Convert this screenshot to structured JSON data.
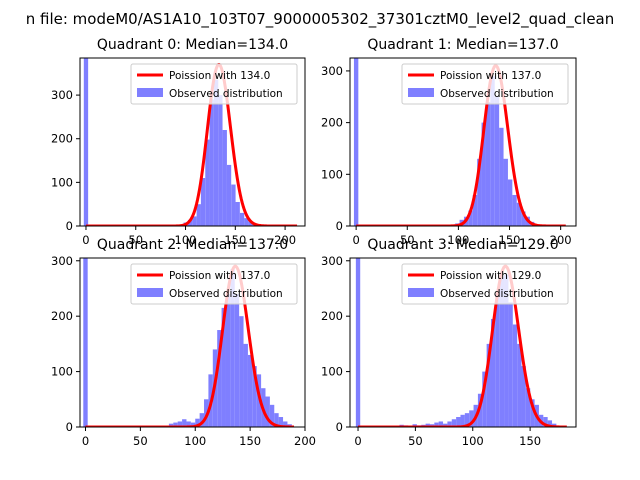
{
  "figure": {
    "suptitle": "n file: modeM0/AS1A10_103T07_9000005302_37301cztM0_level2_quad_clean"
  },
  "colors": {
    "hist": "#7f7fff",
    "poisson": "#ff0000",
    "axis": "#000000",
    "background": "#ffffff"
  },
  "chart_data": [
    {
      "type": "bar",
      "title": "Quadrant 0: Median=134.0",
      "xlim": [
        -6,
        220
      ],
      "ylim": [
        0,
        385
      ],
      "xticks": [
        0,
        50,
        100,
        150,
        200
      ],
      "yticks": [
        0,
        100,
        200,
        300
      ],
      "bin_width": 4.35,
      "hist": {
        "label": "Observed distribution",
        "x": [
          0,
          100.2,
          104.6,
          108.9,
          113.3,
          117.6,
          122.0,
          126.3,
          130.7,
          135.0,
          139.4,
          143.7,
          148.1,
          152.4,
          156.8,
          161.1,
          165.5,
          169.8
        ],
        "values": [
          385,
          8,
          14,
          22,
          50,
          110,
          198,
          290,
          335,
          300,
          220,
          140,
          95,
          55,
          30,
          18,
          10,
          4
        ]
      },
      "poisson": {
        "label": "Poission with 134.0",
        "mu": 134.0,
        "x_range": [
          0,
          212
        ],
        "peak_y": 370
      },
      "legend": "top-right"
    },
    {
      "type": "bar",
      "title": "Quadrant 1: Median=137.0",
      "xlim": [
        -6,
        215
      ],
      "ylim": [
        0,
        325
      ],
      "xticks": [
        0,
        50,
        100,
        150,
        200
      ],
      "yticks": [
        0,
        100,
        200,
        300
      ],
      "bin_width": 4.3,
      "hist": {
        "label": "Observed distribution",
        "x": [
          0,
          99.0,
          103.3,
          107.6,
          111.9,
          116.2,
          120.5,
          124.8,
          129.1,
          133.4,
          137.7,
          142.0,
          146.3,
          150.6,
          154.9,
          159.2,
          163.5,
          167.8,
          172.1
        ],
        "values": [
          325,
          5,
          12,
          18,
          30,
          60,
          130,
          200,
          240,
          290,
          250,
          190,
          130,
          90,
          60,
          45,
          28,
          18,
          8
        ]
      },
      "poisson": {
        "label": "Poission with 137.0",
        "mu": 137.0,
        "x_range": [
          0,
          205
        ],
        "peak_y": 310
      },
      "legend": "top-right"
    },
    {
      "type": "bar",
      "title": "Quadrant 2: Median=137.0",
      "xlim": [
        -5,
        200
      ],
      "ylim": [
        0,
        305
      ],
      "xticks": [
        0,
        50,
        100,
        150,
        200
      ],
      "yticks": [
        0,
        100,
        200,
        300
      ],
      "bin_width": 4.0,
      "hist": {
        "label": "Observed distribution",
        "x": [
          0,
          78,
          82,
          86,
          90,
          94,
          98,
          102,
          106,
          110,
          114,
          118,
          122,
          126,
          130,
          134,
          138,
          142,
          146,
          150,
          154,
          158,
          162,
          166,
          170,
          174,
          178,
          182,
          186
        ],
        "values": [
          305,
          6,
          8,
          10,
          14,
          10,
          8,
          15,
          25,
          50,
          95,
          140,
          175,
          215,
          240,
          285,
          240,
          200,
          150,
          130,
          110,
          95,
          70,
          55,
          40,
          25,
          18,
          10,
          5
        ]
      },
      "poisson": {
        "label": "Poission with 137.0",
        "mu": 137.0,
        "x_range": [
          0,
          190
        ],
        "peak_y": 290
      },
      "legend": "top-right"
    },
    {
      "type": "bar",
      "title": "Quadrant 3: Median=129.0",
      "xlim": [
        -7,
        190
      ],
      "ylim": [
        0,
        305
      ],
      "xticks": [
        0,
        50,
        100,
        150
      ],
      "yticks": [
        0,
        100,
        200,
        300
      ],
      "bin_width": 3.8,
      "hist": {
        "label": "Observed distribution",
        "x": [
          0,
          38,
          41.8,
          45.6,
          49.4,
          53.2,
          57,
          60.8,
          64.6,
          68.4,
          72.2,
          76,
          79.8,
          83.6,
          87.4,
          91.2,
          95,
          98.8,
          102.6,
          106.4,
          110.2,
          114,
          117.8,
          121.6,
          125.4,
          129.2,
          133,
          136.8,
          140.6,
          144.4,
          148.2,
          152,
          155.8,
          159.6,
          163.4,
          167.2,
          171
        ],
        "values": [
          305,
          4,
          3,
          2,
          5,
          3,
          4,
          6,
          5,
          8,
          10,
          6,
          10,
          14,
          18,
          22,
          25,
          30,
          40,
          60,
          100,
          150,
          195,
          240,
          270,
          275,
          225,
          185,
          150,
          110,
          70,
          50,
          40,
          22,
          18,
          12,
          6
        ]
      },
      "poisson": {
        "label": "Poission with 129.0",
        "mu": 129.0,
        "x_range": [
          0,
          182
        ],
        "peak_y": 290
      },
      "legend": "top-right"
    }
  ]
}
